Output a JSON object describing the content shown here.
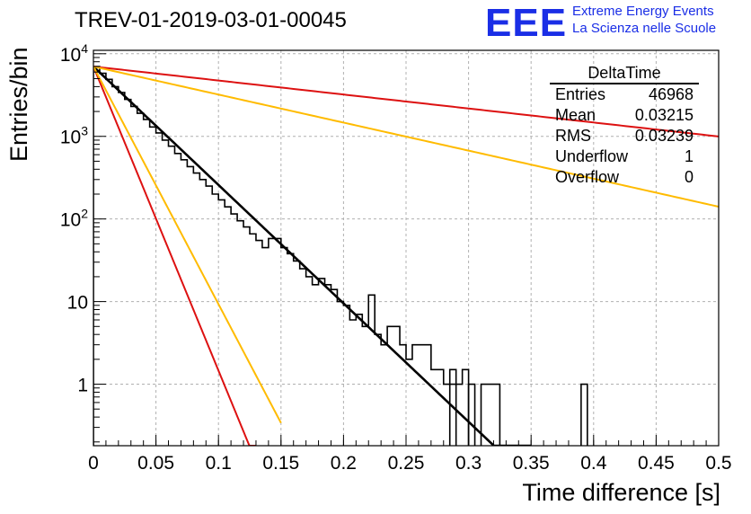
{
  "header": {
    "run_title": "TREV-01-2019-03-01-00045",
    "logo_text": "EEE",
    "logo_line1": "Extreme Energy Events",
    "logo_line2": "La Scienza nelle Scuole"
  },
  "stats_box": {
    "name": "DeltaTime",
    "rows": [
      {
        "label": "Entries",
        "value": "46968"
      },
      {
        "label": "Mean",
        "value": "0.03215"
      },
      {
        "label": "RMS",
        "value": "0.03239"
      },
      {
        "label": "Underflow",
        "value": "1"
      },
      {
        "label": "Overflow",
        "value": "0"
      }
    ]
  },
  "chart_data": {
    "type": "line",
    "title": "TREV-01-2019-03-01-00045",
    "xlabel": "Time difference [s]",
    "ylabel": "Entries/bin",
    "xlim": [
      0,
      0.5
    ],
    "ylim": [
      0.18,
      11000
    ],
    "yscale": "log",
    "grid": true,
    "x_ticks": [
      "0",
      "0.05",
      "0.1",
      "0.15",
      "0.2",
      "0.25",
      "0.3",
      "0.35",
      "0.4",
      "0.45",
      "0.5"
    ],
    "y_ticks": [
      {
        "value": 1,
        "label": "1"
      },
      {
        "value": 10,
        "label": "10"
      },
      {
        "value": 100,
        "label": "10^2"
      },
      {
        "value": 1000,
        "label": "10^3"
      },
      {
        "value": 10000,
        "label": "10^4"
      }
    ],
    "histogram": {
      "name": "DeltaTime",
      "bin_width": 0.005,
      "color": "#000000",
      "values": [
        7000,
        5800,
        4900,
        4000,
        3400,
        2800,
        2300,
        1900,
        1600,
        1300,
        1100,
        900,
        760,
        620,
        520,
        430,
        360,
        300,
        250,
        200,
        170,
        140,
        115,
        95,
        80,
        66,
        55,
        45,
        58,
        58,
        45,
        38,
        31,
        25,
        20,
        16,
        19,
        16,
        14,
        10,
        9,
        6,
        7,
        5,
        12,
        4,
        3,
        5,
        5,
        3,
        2,
        3,
        3,
        3,
        1.5,
        1.5,
        1,
        1.5,
        1,
        1.5,
        0,
        0,
        0,
        0,
        0,
        0,
        0,
        0,
        0,
        0,
        0,
        0,
        0,
        0,
        0,
        0,
        0,
        0,
        0,
        0,
        0,
        0,
        0,
        0,
        0,
        0,
        0,
        0,
        0,
        0,
        0,
        0,
        0,
        0,
        0,
        0,
        0,
        0,
        0,
        0
      ],
      "single_spikes": [
        {
          "x0": 0.285,
          "x1": 0.29,
          "y": 1
        },
        {
          "x0": 0.3,
          "x1": 0.305,
          "y": 1
        },
        {
          "x0": 0.31,
          "x1": 0.325,
          "y": 1
        },
        {
          "x0": 0.39,
          "x1": 0.395,
          "y": 1
        }
      ]
    },
    "series": [
      {
        "name": "",
        "color": "#000000",
        "A": 7000,
        "tau": 0.0303,
        "x_range": [
          0,
          0.35
        ]
      },
      {
        "name": "",
        "color": "#dd1111",
        "A": 7000,
        "tau": 0.0118,
        "x_range": [
          0,
          0.13
        ]
      },
      {
        "name": "",
        "color": "#dd1111",
        "A": 7000,
        "tau": 0.2565,
        "x_range": [
          0,
          0.5
        ]
      },
      {
        "name": "",
        "color": "#ffbb00",
        "A": 7000,
        "tau": 0.0151,
        "x_range": [
          0,
          0.15
        ]
      },
      {
        "name": "",
        "color": "#ffbb00",
        "A": 7000,
        "tau": 0.128,
        "x_range": [
          0,
          0.5
        ]
      }
    ]
  }
}
